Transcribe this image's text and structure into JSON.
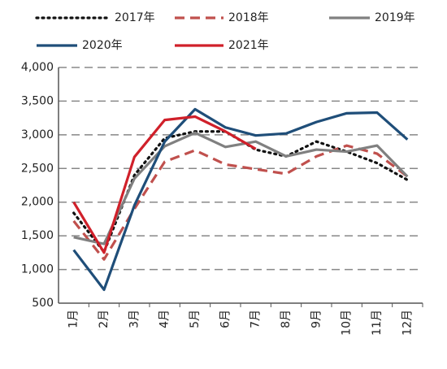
{
  "chart_data": {
    "type": "line",
    "categories": [
      "1月",
      "2月",
      "3月",
      "4月",
      "5月",
      "6月",
      "7月",
      "8月",
      "9月",
      "10月",
      "11月",
      "12月"
    ],
    "series": [
      {
        "name": "2017年",
        "color": "#111111",
        "dash": "dotted",
        "values": [
          1840,
          1260,
          2400,
          2950,
          3050,
          3050,
          2780,
          2680,
          2900,
          2750,
          2580,
          2330
        ]
      },
      {
        "name": "2018年",
        "color": "#c0504d",
        "dash": "dashed",
        "values": [
          1720,
          1150,
          1900,
          2600,
          2770,
          2560,
          2490,
          2420,
          2680,
          2840,
          2720,
          2380
        ]
      },
      {
        "name": "2019年",
        "color": "#808080",
        "dash": "solid",
        "values": [
          1480,
          1380,
          2350,
          2830,
          3030,
          2820,
          2900,
          2680,
          2780,
          2750,
          2840,
          2380
        ]
      },
      {
        "name": "2020年",
        "color": "#1f4e79",
        "dash": "solid",
        "values": [
          1290,
          700,
          1950,
          2900,
          3380,
          3110,
          2990,
          3020,
          3190,
          3320,
          3330,
          2930
        ]
      },
      {
        "name": "2021年",
        "color": "#d0202a",
        "dash": "solid",
        "values": [
          2000,
          1250,
          2670,
          3220,
          3270,
          3050,
          2790,
          null,
          null,
          null,
          null,
          null
        ]
      }
    ],
    "ylim": [
      500,
      4000
    ],
    "yticks": [
      500,
      {
        "value": 1000,
        "label": "1,000"
      },
      {
        "value": 1500,
        "label": "1,500"
      },
      {
        "value": 2000,
        "label": "2,000"
      },
      {
        "value": 2500,
        "label": "2,500"
      },
      {
        "value": 3000,
        "label": "3,000"
      },
      {
        "value": 3500,
        "label": "3,500"
      },
      {
        "value": 4000,
        "label": "4,000"
      }
    ],
    "grid": true
  }
}
